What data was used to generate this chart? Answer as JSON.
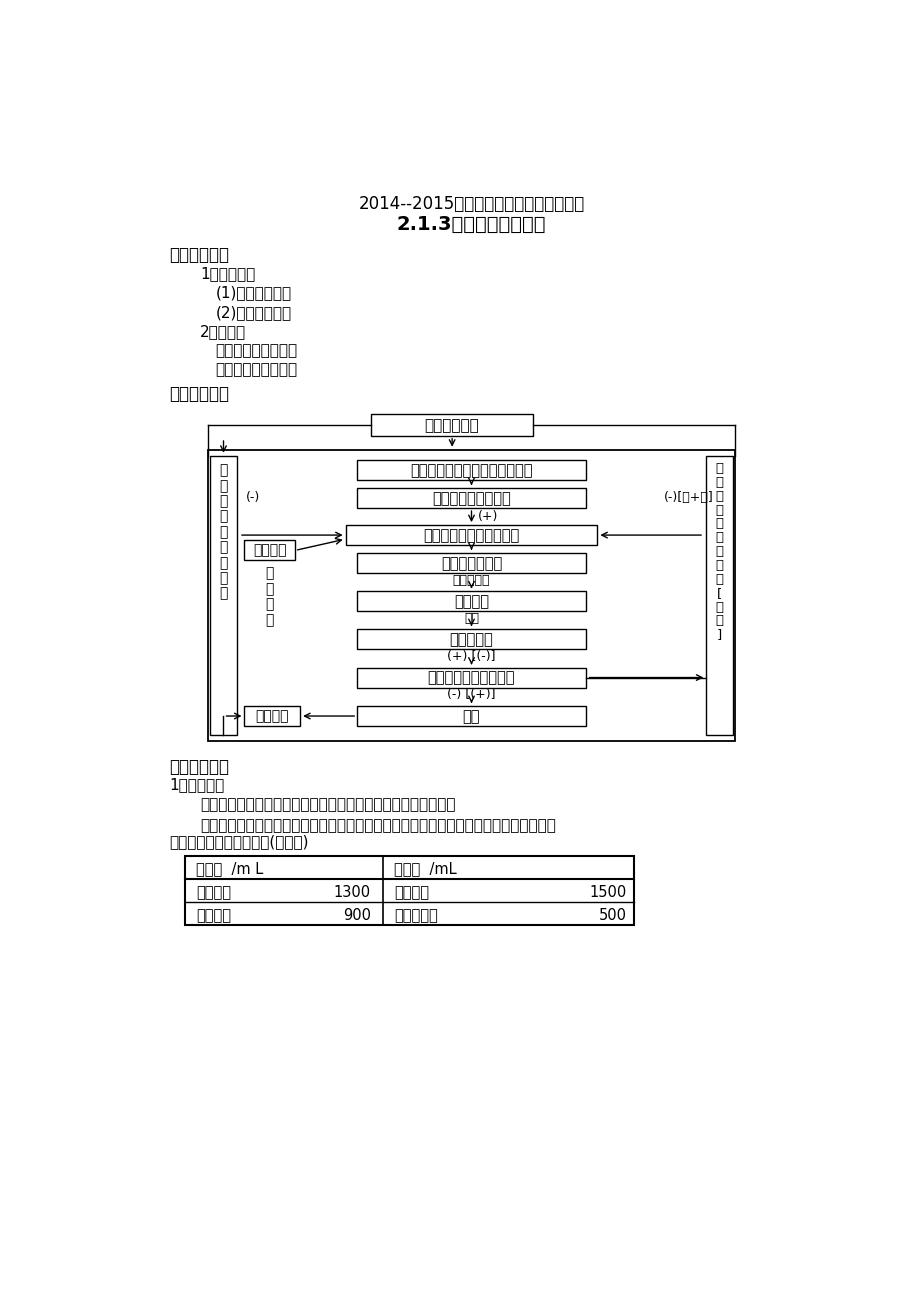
{
  "title1": "2014--2015学年苏教版必修三同步导学案",
  "title2": "2.1.3水和无机盐的调节",
  "section1": "一、目标导航",
  "s1_items": [
    "1、学习目标",
    "(1)水平衡的调节",
    "(2)无机盐的调节",
    "2、重难点",
    "重点：水平衡的调节",
    "难点：无机盐的调节"
  ],
  "section2": "二、知识网络",
  "section3": "三、导学过程",
  "s3_items": [
    "1、水的平衡",
    "水的功用：维持组织形态；促进物质代谢；调节体温和润滑作用",
    "人体内水的来源是饮水、食物中所含的水和代谢中产生的水其中，饮水和食物中所含的水",
    "是人体所需水的主要来源(如下表)"
  ],
  "table_headers": [
    "摄入量  /m L",
    "排出量  /mL"
  ],
  "table_data": [
    [
      "来自饮水",
      "1300",
      "由肾排出",
      "1500"
    ],
    [
      "来自食物",
      "900",
      "由皮肤排出",
      "500"
    ]
  ],
  "bg_color": "#ffffff",
  "text_color": "#000000"
}
